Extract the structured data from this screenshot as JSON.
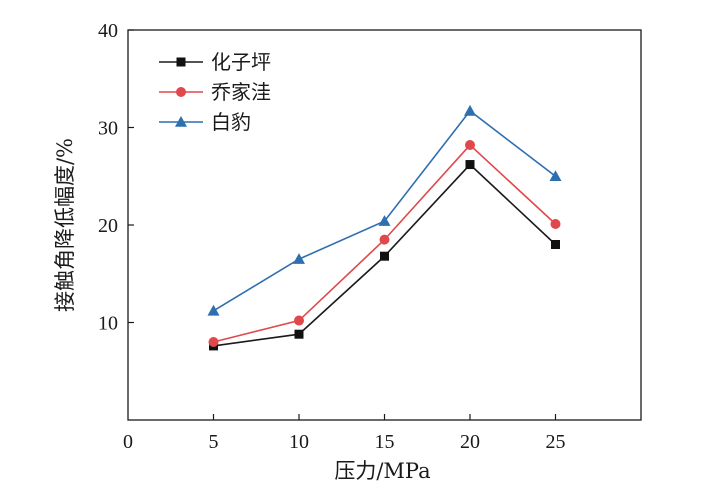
{
  "chart_data": {
    "type": "line",
    "xlabel": "压力/MPa",
    "ylabel": "接触角降低幅度/%",
    "x": [
      5,
      10,
      15,
      20,
      25
    ],
    "xlim": [
      0,
      30
    ],
    "ylim": [
      0,
      40
    ],
    "xticks": [
      0,
      5,
      10,
      15,
      20,
      25
    ],
    "yticks": [
      10,
      20,
      30,
      40
    ],
    "grid": false,
    "legend_position": "top-left",
    "series": [
      {
        "name": "化子坪",
        "marker": "square",
        "color": "#1a1a1a",
        "marker_color": "#111111",
        "values": [
          7.6,
          8.8,
          16.8,
          26.2,
          18.0
        ]
      },
      {
        "name": "乔家洼",
        "marker": "circle",
        "color": "#e0484b",
        "marker_color": "#e0484b",
        "values": [
          8.0,
          10.2,
          18.5,
          28.2,
          20.1
        ]
      },
      {
        "name": "白豹",
        "marker": "triangle",
        "color": "#2e6fb0",
        "marker_color": "#2e6fb0",
        "values": [
          11.2,
          16.5,
          20.4,
          31.7,
          25.0
        ]
      }
    ]
  }
}
